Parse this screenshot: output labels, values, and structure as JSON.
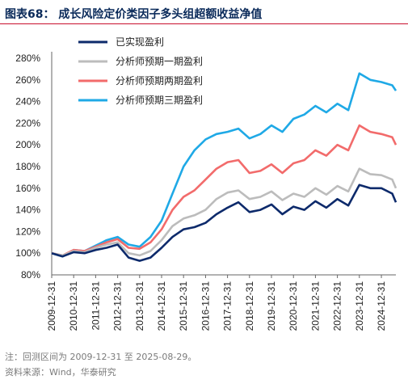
{
  "header": {
    "figure_no": "图表68：",
    "title": "成长风险定价类因子多头组超额收益净值"
  },
  "notes": {
    "note": "注：回测区间为 2009-12-31 至 2025-08-29。",
    "source": "资料来源：Wind，华泰研究"
  },
  "chart_data": {
    "type": "line",
    "title": "成长风险定价类因子多头组超额收益净值",
    "x_tick_labels": [
      "2009-12-31",
      "2010-12-31",
      "2011-12-31",
      "2012-12-31",
      "2013-12-31",
      "2014-12-31",
      "2015-12-31",
      "2016-12-31",
      "2017-12-31",
      "2018-12-31",
      "2019-12-31",
      "2020-12-31",
      "2021-12-31",
      "2022-12-31",
      "2023-12-31",
      "2024-12-31"
    ],
    "y_tick_labels": [
      "80%",
      "100%",
      "120%",
      "140%",
      "160%",
      "180%",
      "200%",
      "220%",
      "240%",
      "260%",
      "280%"
    ],
    "ylim": [
      0.8,
      2.8
    ],
    "x_range": [
      "2009-12-31",
      "2025-08-29"
    ],
    "legend_position": "top-left",
    "grid": false,
    "series": [
      {
        "name": "已实现盈利",
        "color": "#0d2a6b",
        "x": [
          "2009-12-31",
          "2010-06-30",
          "2010-12-31",
          "2011-06-30",
          "2011-12-31",
          "2012-06-30",
          "2012-12-31",
          "2013-06-30",
          "2013-12-31",
          "2014-06-30",
          "2014-12-31",
          "2015-06-30",
          "2015-12-31",
          "2016-06-30",
          "2016-12-31",
          "2017-06-30",
          "2017-12-31",
          "2018-06-30",
          "2018-12-31",
          "2019-06-30",
          "2019-12-31",
          "2020-06-30",
          "2020-12-31",
          "2021-06-30",
          "2021-12-31",
          "2022-06-30",
          "2022-12-31",
          "2023-06-30",
          "2023-12-31",
          "2024-06-30",
          "2024-12-31",
          "2025-06-30",
          "2025-08-29"
        ],
        "values": [
          1.0,
          0.97,
          1.01,
          1.0,
          1.03,
          1.05,
          1.08,
          0.96,
          0.93,
          0.96,
          1.05,
          1.15,
          1.22,
          1.24,
          1.28,
          1.36,
          1.42,
          1.47,
          1.38,
          1.4,
          1.45,
          1.36,
          1.43,
          1.4,
          1.48,
          1.42,
          1.5,
          1.44,
          1.63,
          1.6,
          1.6,
          1.55,
          1.47
        ]
      },
      {
        "name": "分析师预期一期盈利",
        "color": "#bcbcbc",
        "x": [
          "2009-12-31",
          "2010-06-30",
          "2010-12-31",
          "2011-06-30",
          "2011-12-31",
          "2012-06-30",
          "2012-12-31",
          "2013-06-30",
          "2013-12-31",
          "2014-06-30",
          "2014-12-31",
          "2015-06-30",
          "2015-12-31",
          "2016-06-30",
          "2016-12-31",
          "2017-06-30",
          "2017-12-31",
          "2018-06-30",
          "2018-12-31",
          "2019-06-30",
          "2019-12-31",
          "2020-06-30",
          "2020-12-31",
          "2021-06-30",
          "2021-12-31",
          "2022-06-30",
          "2022-12-31",
          "2023-06-30",
          "2023-12-31",
          "2024-06-30",
          "2024-12-31",
          "2025-06-30",
          "2025-08-29"
        ],
        "values": [
          1.0,
          0.98,
          1.02,
          1.01,
          1.05,
          1.08,
          1.1,
          1.0,
          0.98,
          1.02,
          1.12,
          1.25,
          1.32,
          1.35,
          1.4,
          1.5,
          1.56,
          1.58,
          1.5,
          1.52,
          1.57,
          1.49,
          1.55,
          1.52,
          1.6,
          1.54,
          1.62,
          1.57,
          1.78,
          1.73,
          1.72,
          1.68,
          1.6
        ]
      },
      {
        "name": "分析师预期两期盈利",
        "color": "#f26b6b",
        "x": [
          "2009-12-31",
          "2010-06-30",
          "2010-12-31",
          "2011-06-30",
          "2011-12-31",
          "2012-06-30",
          "2012-12-31",
          "2013-06-30",
          "2013-12-31",
          "2014-06-30",
          "2014-12-31",
          "2015-06-30",
          "2015-12-31",
          "2016-06-30",
          "2016-12-31",
          "2017-06-30",
          "2017-12-31",
          "2018-06-30",
          "2018-12-31",
          "2019-06-30",
          "2019-12-31",
          "2020-06-30",
          "2020-12-31",
          "2021-06-30",
          "2021-12-31",
          "2022-06-30",
          "2022-12-31",
          "2023-06-30",
          "2023-12-31",
          "2024-06-30",
          "2024-12-31",
          "2025-06-30",
          "2025-08-29"
        ],
        "values": [
          1.0,
          0.98,
          1.03,
          1.02,
          1.06,
          1.1,
          1.13,
          1.05,
          1.04,
          1.1,
          1.22,
          1.4,
          1.52,
          1.58,
          1.68,
          1.78,
          1.84,
          1.86,
          1.74,
          1.76,
          1.82,
          1.74,
          1.83,
          1.86,
          1.95,
          1.9,
          2.0,
          1.95,
          2.18,
          2.12,
          2.1,
          2.07,
          2.0
        ]
      },
      {
        "name": "分析师预期三期盈利",
        "color": "#1fa9e6",
        "x": [
          "2009-12-31",
          "2010-06-30",
          "2010-12-31",
          "2011-06-30",
          "2011-12-31",
          "2012-06-30",
          "2012-12-31",
          "2013-06-30",
          "2013-12-31",
          "2014-06-30",
          "2014-12-31",
          "2015-06-30",
          "2015-12-31",
          "2016-06-30",
          "2016-12-31",
          "2017-06-30",
          "2017-12-31",
          "2018-06-30",
          "2018-12-31",
          "2019-06-30",
          "2019-12-31",
          "2020-06-30",
          "2020-12-31",
          "2021-06-30",
          "2021-12-31",
          "2022-06-30",
          "2022-12-31",
          "2023-06-30",
          "2023-12-31",
          "2024-06-30",
          "2024-12-31",
          "2025-06-30",
          "2025-08-29"
        ],
        "values": [
          1.0,
          0.97,
          1.03,
          1.02,
          1.07,
          1.12,
          1.15,
          1.08,
          1.06,
          1.15,
          1.3,
          1.55,
          1.8,
          1.95,
          2.05,
          2.1,
          2.12,
          2.15,
          2.06,
          2.1,
          2.18,
          2.12,
          2.24,
          2.28,
          2.36,
          2.3,
          2.38,
          2.32,
          2.66,
          2.6,
          2.58,
          2.55,
          2.5
        ]
      }
    ]
  }
}
